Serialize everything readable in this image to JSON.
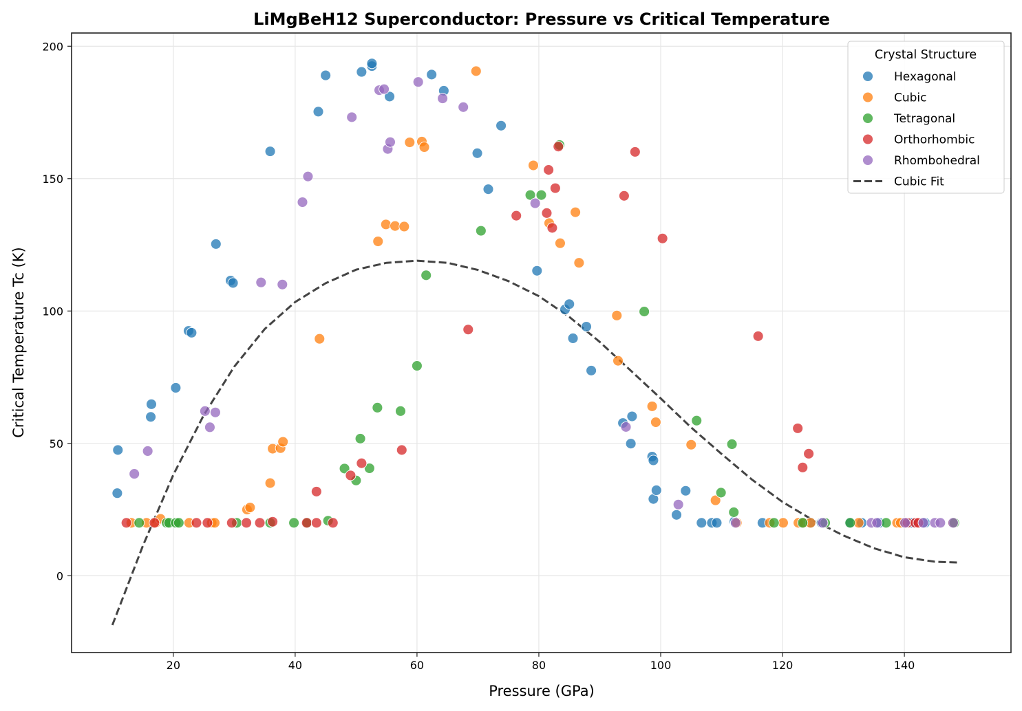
{
  "chart_data": {
    "type": "scatter",
    "title": "LiMgBeH12 Superconductor: Pressure vs Critical Temperature",
    "xlabel": "Pressure (GPa)",
    "ylabel": "Critical Temperature Tc (K)",
    "xlim": [
      3.3,
      157.5
    ],
    "ylim": [
      -29,
      205
    ],
    "xticks": [
      20,
      40,
      60,
      80,
      100,
      120,
      140
    ],
    "yticks": [
      0,
      50,
      100,
      150,
      200
    ],
    "grid": true,
    "legend": {
      "title": "Crystal Structure",
      "placement": "top-right"
    },
    "series": [
      {
        "name": "Hexagonal",
        "color": "#1f77b4",
        "points": [
          [
            10.9,
            47.5
          ],
          [
            10.8,
            31.2
          ],
          [
            16.4,
            64.8
          ],
          [
            16.3,
            60.0
          ],
          [
            20.4,
            71.0
          ],
          [
            22.5,
            92.5
          ],
          [
            23.0,
            91.8
          ],
          [
            27.0,
            125.3
          ],
          [
            29.4,
            111.5
          ],
          [
            29.8,
            110.6
          ],
          [
            35.9,
            160.3
          ],
          [
            43.8,
            175.3
          ],
          [
            45.0,
            189.0
          ],
          [
            50.9,
            190.3
          ],
          [
            52.6,
            192.5
          ],
          [
            52.6,
            193.5
          ],
          [
            55.5,
            181.0
          ],
          [
            62.4,
            189.3
          ],
          [
            64.4,
            183.2
          ],
          [
            69.9,
            159.6
          ],
          [
            71.7,
            146.0
          ],
          [
            73.8,
            170.0
          ],
          [
            79.7,
            115.2
          ],
          [
            84.3,
            100.6
          ],
          [
            85.0,
            102.6
          ],
          [
            85.6,
            89.7
          ],
          [
            87.8,
            94.1
          ],
          [
            88.6,
            77.5
          ],
          [
            93.8,
            57.7
          ],
          [
            95.3,
            60.2
          ],
          [
            95.1,
            49.9
          ],
          [
            98.6,
            45.0
          ],
          [
            98.8,
            43.6
          ],
          [
            98.8,
            29.0
          ],
          [
            99.3,
            32.3
          ],
          [
            102.6,
            23.0
          ],
          [
            104.1,
            32.1
          ],
          [
            106.7,
            20.0
          ],
          [
            108.4,
            20.0
          ],
          [
            109.2,
            20.0
          ],
          [
            112.1,
            20.5
          ],
          [
            116.7,
            20.0
          ],
          [
            124.6,
            20.0
          ],
          [
            126.4,
            20.0
          ],
          [
            131.0,
            20.0
          ],
          [
            133.0,
            20.0
          ],
          [
            135.9,
            20.0
          ],
          [
            141.1,
            20.0
          ],
          [
            143.4,
            20.0
          ]
        ]
      },
      {
        "name": "Cubic",
        "color": "#ff7f0e",
        "points": [
          [
            13.1,
            20.0
          ],
          [
            15.6,
            20.0
          ],
          [
            17.1,
            20.0
          ],
          [
            17.9,
            21.5
          ],
          [
            22.6,
            20.0
          ],
          [
            26.3,
            20.0
          ],
          [
            26.8,
            20.0
          ],
          [
            32.1,
            25.0
          ],
          [
            32.6,
            25.8
          ],
          [
            35.9,
            35.0
          ],
          [
            36.3,
            48.0
          ],
          [
            37.6,
            48.2
          ],
          [
            38.0,
            50.6
          ],
          [
            44.0,
            89.5
          ],
          [
            53.6,
            126.3
          ],
          [
            54.9,
            132.7
          ],
          [
            56.4,
            132.1
          ],
          [
            57.9,
            131.9
          ],
          [
            58.8,
            163.7
          ],
          [
            60.8,
            164.0
          ],
          [
            61.2,
            161.9
          ],
          [
            69.7,
            190.6
          ],
          [
            79.1,
            155.0
          ],
          [
            81.7,
            133.2
          ],
          [
            83.5,
            125.6
          ],
          [
            86.0,
            137.3
          ],
          [
            86.6,
            118.2
          ],
          [
            92.8,
            98.3
          ],
          [
            93.0,
            81.2
          ],
          [
            98.6,
            64.0
          ],
          [
            99.2,
            58.0
          ],
          [
            105.0,
            49.5
          ],
          [
            109.0,
            28.5
          ],
          [
            112.5,
            20.0
          ],
          [
            117.9,
            20.0
          ],
          [
            120.1,
            20.0
          ],
          [
            122.6,
            20.0
          ],
          [
            123.5,
            20.0
          ],
          [
            124.6,
            20.0
          ],
          [
            132.5,
            20.0
          ],
          [
            138.8,
            20.0
          ],
          [
            139.4,
            20.0
          ],
          [
            148.0,
            20.0
          ]
        ]
      },
      {
        "name": "Tetragonal",
        "color": "#2ca02c",
        "points": [
          [
            14.4,
            20.0
          ],
          [
            18.9,
            20.0
          ],
          [
            19.3,
            20.0
          ],
          [
            20.4,
            20.0
          ],
          [
            20.9,
            20.0
          ],
          [
            30.4,
            20.0
          ],
          [
            35.9,
            20.0
          ],
          [
            39.8,
            20.0
          ],
          [
            42.0,
            20.0
          ],
          [
            45.4,
            20.8
          ],
          [
            48.1,
            40.5
          ],
          [
            50.0,
            36.0
          ],
          [
            50.7,
            51.8
          ],
          [
            52.2,
            40.6
          ],
          [
            53.5,
            63.5
          ],
          [
            57.3,
            62.2
          ],
          [
            60.0,
            79.3
          ],
          [
            61.5,
            113.5
          ],
          [
            70.5,
            130.3
          ],
          [
            78.6,
            143.8
          ],
          [
            80.4,
            143.8
          ],
          [
            83.4,
            162.7
          ],
          [
            97.3,
            99.8
          ],
          [
            105.9,
            58.6
          ],
          [
            109.9,
            31.4
          ],
          [
            111.7,
            49.7
          ],
          [
            112.0,
            24.0
          ],
          [
            118.6,
            20.0
          ],
          [
            123.3,
            20.0
          ],
          [
            127.0,
            20.0
          ],
          [
            131.1,
            20.0
          ],
          [
            137.0,
            20.0
          ],
          [
            148.2,
            20.0
          ]
        ]
      },
      {
        "name": "Orthorhombic",
        "color": "#d62728",
        "points": [
          [
            12.3,
            20.0
          ],
          [
            16.9,
            20.0
          ],
          [
            23.8,
            20.0
          ],
          [
            25.6,
            20.0
          ],
          [
            29.6,
            20.0
          ],
          [
            32.0,
            20.0
          ],
          [
            34.2,
            20.0
          ],
          [
            36.3,
            20.4
          ],
          [
            41.9,
            20.0
          ],
          [
            43.5,
            20.0
          ],
          [
            46.2,
            20.0
          ],
          [
            43.5,
            31.8
          ],
          [
            49.1,
            37.9
          ],
          [
            50.9,
            42.5
          ],
          [
            57.5,
            47.5
          ],
          [
            68.4,
            93.0
          ],
          [
            76.3,
            136.0
          ],
          [
            81.3,
            137.0
          ],
          [
            81.6,
            153.3
          ],
          [
            82.2,
            131.4
          ],
          [
            82.7,
            146.4
          ],
          [
            83.2,
            162.1
          ],
          [
            94.0,
            143.5
          ],
          [
            95.8,
            160.1
          ],
          [
            100.3,
            127.4
          ],
          [
            116.0,
            90.5
          ],
          [
            122.5,
            55.7
          ],
          [
            123.3,
            40.9
          ],
          [
            124.3,
            46.1
          ],
          [
            140.5,
            20.0
          ],
          [
            141.8,
            20.0
          ],
          [
            142.3,
            20.0
          ]
        ]
      },
      {
        "name": "Rhombohedral",
        "color": "#9467bd",
        "points": [
          [
            13.6,
            38.5
          ],
          [
            15.8,
            47.1
          ],
          [
            25.2,
            62.2
          ],
          [
            26.0,
            56.1
          ],
          [
            26.9,
            61.7
          ],
          [
            34.4,
            110.8
          ],
          [
            37.9,
            110.0
          ],
          [
            41.2,
            141.1
          ],
          [
            42.1,
            150.8
          ],
          [
            49.3,
            173.2
          ],
          [
            53.8,
            183.4
          ],
          [
            54.6,
            183.8
          ],
          [
            55.2,
            161.2
          ],
          [
            55.6,
            163.8
          ],
          [
            60.2,
            186.5
          ],
          [
            64.2,
            180.3
          ],
          [
            67.6,
            177.0
          ],
          [
            79.4,
            140.7
          ],
          [
            94.3,
            56.2
          ],
          [
            102.9,
            26.9
          ],
          [
            112.3,
            20.0
          ],
          [
            126.6,
            20.0
          ],
          [
            134.6,
            20.0
          ],
          [
            135.5,
            20.0
          ],
          [
            140.1,
            20.0
          ],
          [
            143.1,
            20.0
          ],
          [
            145.0,
            20.0
          ],
          [
            145.9,
            20.0
          ],
          [
            148.0,
            20.0
          ]
        ]
      }
    ],
    "fit": {
      "name": "Cubic Fit",
      "color": "#444444",
      "style": "dashed",
      "x": [
        10,
        15,
        20,
        25,
        30,
        35,
        40,
        45,
        50,
        55,
        60,
        65,
        70,
        75,
        80,
        85,
        90,
        95,
        100,
        105,
        110,
        115,
        120,
        125,
        130,
        135,
        140,
        145,
        149
      ],
      "y": [
        -18.6,
        11.3,
        38.1,
        60.7,
        79.0,
        93.2,
        103.4,
        110.5,
        115.6,
        118.2,
        119.0,
        118.2,
        115.5,
        111.3,
        105.6,
        97.8,
        88.3,
        77.7,
        67.0,
        56.0,
        46.0,
        36.3,
        27.9,
        21.0,
        15.2,
        10.4,
        7.0,
        5.3,
        5.0
      ]
    }
  }
}
